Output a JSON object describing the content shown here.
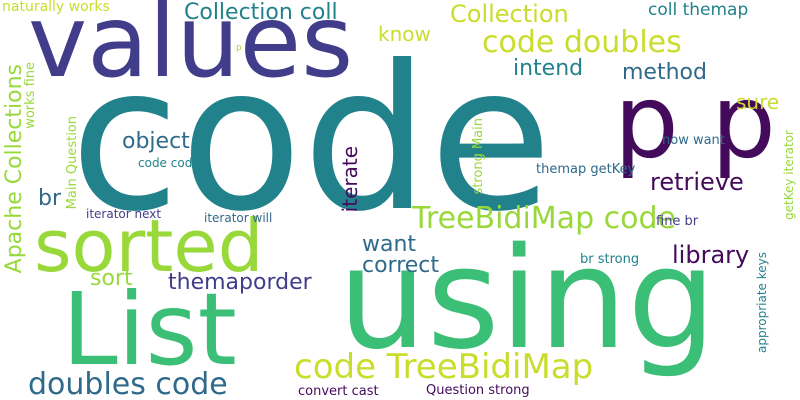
{
  "colors": {
    "background": "#ffffff",
    "teal": "#21828c",
    "green": "#3bbf77",
    "lime": "#99d83a",
    "yellow": "#c8dd2c",
    "indigo": "#423d8a",
    "slate": "#2f6a8b",
    "purple": "#440a5c"
  },
  "words": {
    "code": "code",
    "values": "values",
    "using": "using",
    "sorted": "sorted",
    "list": "List",
    "p_p": "p p",
    "code_treebidimap": "code TreeBidiMap",
    "doubles_code": "doubles code",
    "treebidimap_code": "TreeBidiMap code",
    "code_doubles": "code doubles",
    "collection_coll": "Collection coll",
    "collection": "Collection",
    "apache_collections": "Apache Collections",
    "retrieve": "retrieve",
    "iterate": "iterate",
    "library": "library",
    "method": "method",
    "object": "object",
    "intend": "intend",
    "sure": "sure",
    "correct": "correct",
    "want": "want",
    "sort": "sort",
    "themaporder": "themaporder",
    "know": "know",
    "br": "br",
    "coll_themap": "coll themap",
    "naturally_works": "naturally works",
    "works_fine": "works fine",
    "main_question": "Main Question",
    "strong_main": "strong Main",
    "iterator_next": "iterator next",
    "iterator_will": "iterator will",
    "code_code": "code code",
    "themap_getkey": "themap getKey",
    "fine_br": "fine br",
    "now_want": "now want",
    "getkey_iterator": "getKey iterator",
    "appropriate_keys": "appropriate keys",
    "br_strong": "br strong",
    "convert_cast": "convert cast",
    "question_strong": "Question strong",
    "p": "p"
  }
}
